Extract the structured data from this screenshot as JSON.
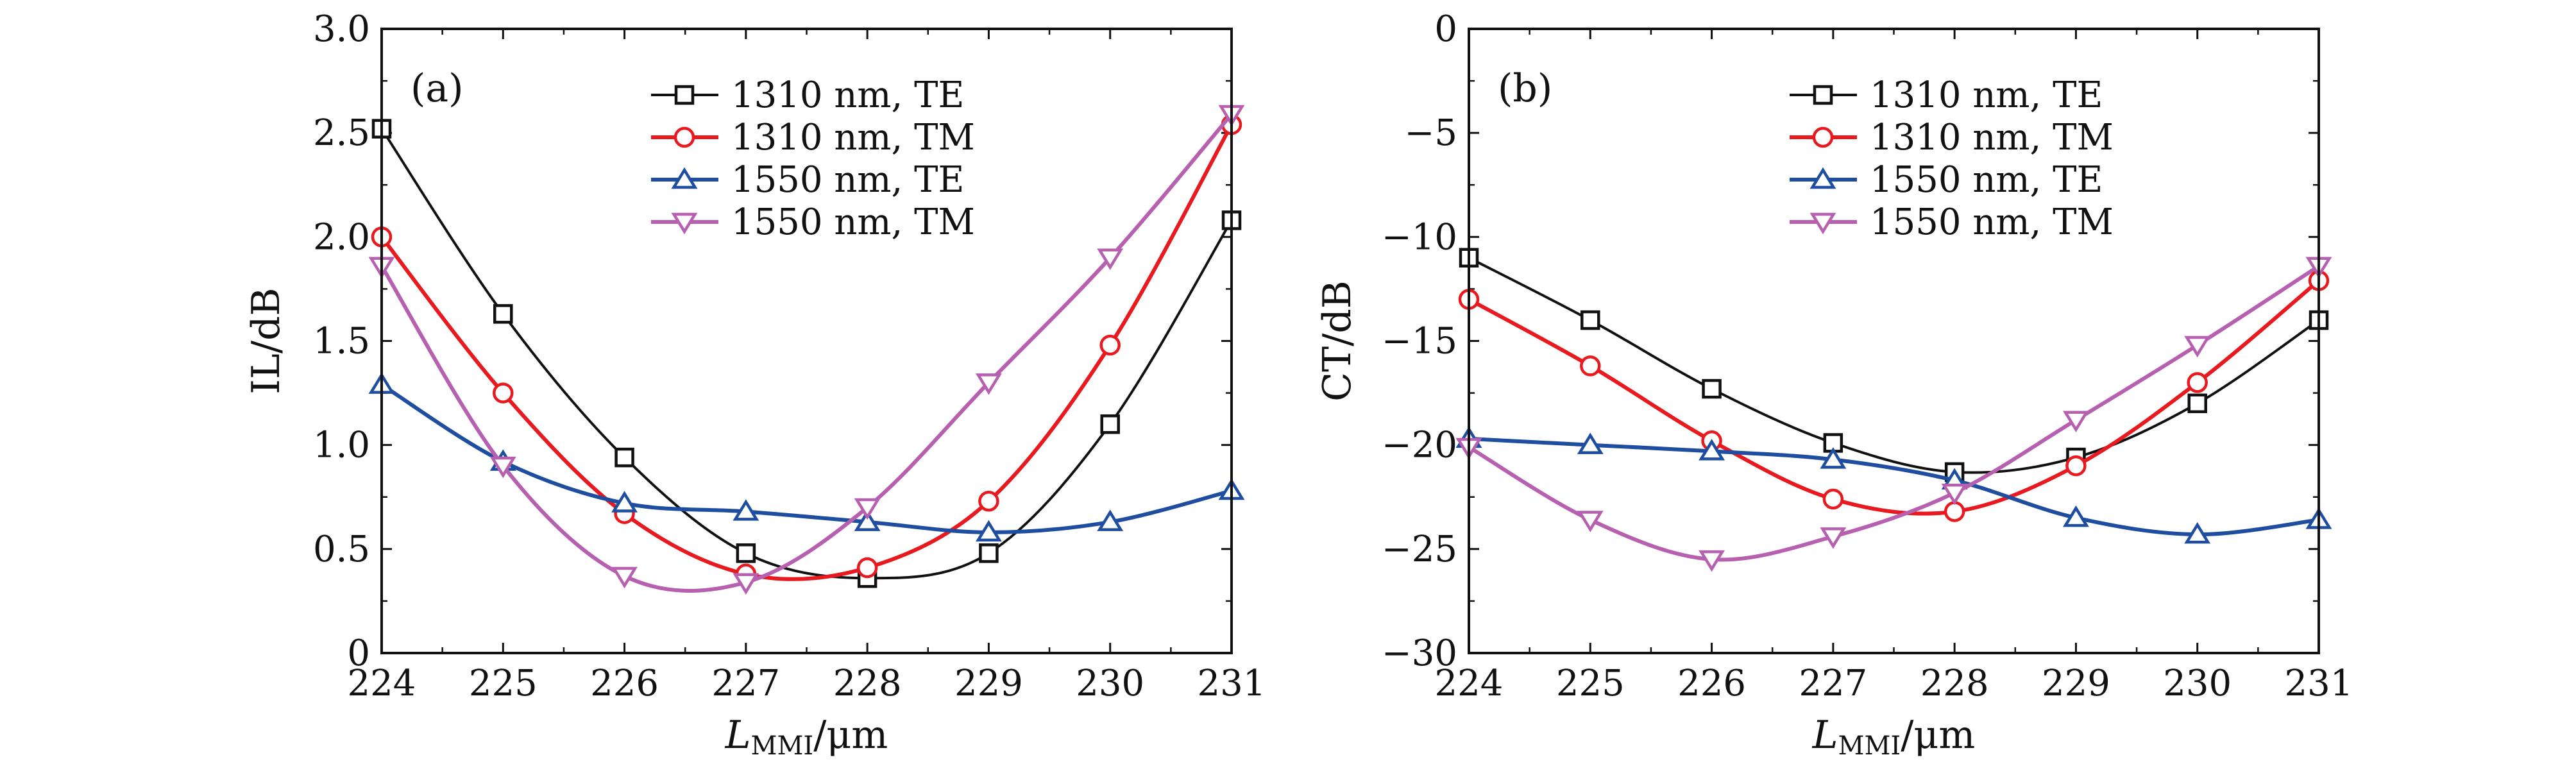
{
  "chart_data": [
    {
      "type": "line",
      "panel_label": "(a)",
      "xlabel": "L_MMI/μm",
      "xlabel_main": "L",
      "xlabel_sub": "MMI",
      "xlabel_unit": "/μm",
      "ylabel": "IL/dB",
      "xlim": [
        224,
        231
      ],
      "ylim": [
        0,
        3.0
      ],
      "x_ticks": [
        "224",
        "225",
        "226",
        "227",
        "228",
        "229",
        "230",
        "231"
      ],
      "y_ticks": [
        "0",
        "0.5",
        "1.0",
        "1.5",
        "2.0",
        "2.5",
        "3.0"
      ],
      "legend_position": "top-center",
      "x": [
        224,
        225,
        226,
        227,
        228,
        229,
        230,
        231
      ],
      "series": [
        {
          "name": "1310 nm, TE",
          "color": "#111111",
          "marker": "square",
          "values": [
            2.52,
            1.63,
            0.94,
            0.48,
            0.36,
            0.48,
            1.1,
            2.08
          ]
        },
        {
          "name": "1310 nm, TM",
          "color": "#e8191f",
          "marker": "circle",
          "values": [
            2.0,
            1.25,
            0.67,
            0.38,
            0.41,
            0.73,
            1.48,
            2.54
          ]
        },
        {
          "name": "1550 nm, TE",
          "color": "#1f4ea0",
          "marker": "triangle-up",
          "values": [
            1.29,
            0.92,
            0.72,
            0.68,
            0.63,
            0.58,
            0.63,
            0.78
          ]
        },
        {
          "name": "1550 nm, TM",
          "color": "#b760b0",
          "marker": "triangle-down",
          "values": [
            1.86,
            0.9,
            0.37,
            0.34,
            0.7,
            1.3,
            1.9,
            2.59
          ]
        }
      ]
    },
    {
      "type": "line",
      "panel_label": "(b)",
      "xlabel": "L_MMI/μm",
      "xlabel_main": "L",
      "xlabel_sub": "MMI",
      "xlabel_unit": "/μm",
      "ylabel": "CT/dB",
      "xlim": [
        224,
        231
      ],
      "ylim": [
        -30,
        0
      ],
      "x_ticks": [
        "224",
        "225",
        "226",
        "227",
        "228",
        "229",
        "230",
        "231"
      ],
      "y_ticks": [
        "−30",
        "−25",
        "−20",
        "−15",
        "−10",
        "−5",
        "0"
      ],
      "legend_position": "top-center",
      "x": [
        224,
        225,
        226,
        227,
        228,
        229,
        230,
        231
      ],
      "series": [
        {
          "name": "1310 nm, TE",
          "color": "#111111",
          "marker": "square",
          "values": [
            -11.0,
            -14.0,
            -17.3,
            -19.9,
            -21.3,
            -20.6,
            -18.0,
            -14.0
          ]
        },
        {
          "name": "1310 nm, TM",
          "color": "#e8191f",
          "marker": "circle",
          "values": [
            -13.0,
            -16.2,
            -19.8,
            -22.6,
            -23.2,
            -21.0,
            -17.0,
            -12.1
          ]
        },
        {
          "name": "1550 nm, TE",
          "color": "#1f4ea0",
          "marker": "triangle-up",
          "values": [
            -19.7,
            -20.0,
            -20.3,
            -20.7,
            -21.7,
            -23.5,
            -24.3,
            -23.6
          ]
        },
        {
          "name": "1550 nm, TM",
          "color": "#b760b0",
          "marker": "triangle-down",
          "values": [
            -20.1,
            -23.6,
            -25.5,
            -24.4,
            -22.3,
            -18.8,
            -15.2,
            -11.4
          ]
        }
      ]
    }
  ]
}
